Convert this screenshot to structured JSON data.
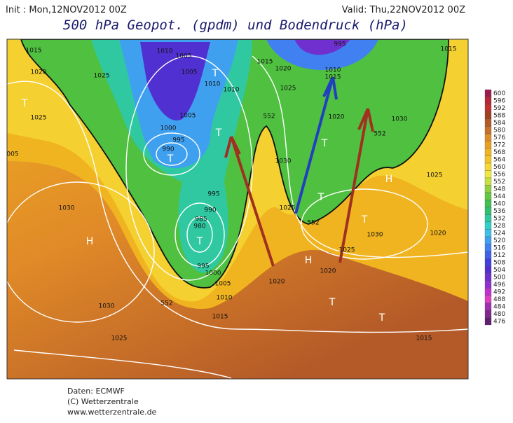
{
  "header": {
    "init": "Init : Mon,12NOV2012 00Z",
    "valid": "Valid: Thu,22NOV2012 00Z",
    "title": "500 hPa Geopot. (gpdm) und Bodendruck (hPa)"
  },
  "colorbar": {
    "levels": [
      600,
      596,
      592,
      588,
      584,
      580,
      576,
      572,
      568,
      564,
      560,
      556,
      552,
      548,
      544,
      540,
      536,
      532,
      528,
      524,
      520,
      516,
      512,
      508,
      504,
      500,
      496,
      492,
      488,
      484,
      480,
      476
    ],
    "colors": [
      "#9b1c4c",
      "#b42838",
      "#c0302c",
      "#a04020",
      "#b45a28",
      "#c8702c",
      "#dc8c28",
      "#e8a020",
      "#f0b420",
      "#f4c428",
      "#f8d830",
      "#f0e840",
      "#c8e040",
      "#90d040",
      "#60c840",
      "#40c050",
      "#30c070",
      "#30c8a0",
      "#30d0c8",
      "#40c0e8",
      "#40a0f0",
      "#4080f0",
      "#4060e8",
      "#4040e0",
      "#5030d0",
      "#7030d0",
      "#9030d0",
      "#c030d0",
      "#e040c0",
      "#a030b0",
      "#802890",
      "#602070"
    ]
  },
  "map_labels": [
    "1015",
    "1020",
    "1025",
    "T",
    "005",
    "1030",
    "H",
    "1030",
    "1025",
    "1025",
    "1010",
    "1005",
    "1005",
    "T",
    "1010",
    "1010",
    "1005",
    "1000",
    "995",
    "990",
    "T",
    "T",
    "995",
    "990",
    "985",
    "980",
    "T",
    "995",
    "1000",
    "1005",
    "1010",
    "1015",
    "1015",
    "1020",
    "1025",
    "995",
    "1010",
    "1015",
    "1020",
    "T",
    "1030",
    "1025",
    "T",
    "H",
    "T",
    "1030",
    "1025",
    "H",
    "1020",
    "1020",
    "T",
    "T",
    "1015",
    "1025",
    "1020",
    "1015",
    "1030",
    "552",
    "552",
    "552",
    "552"
  ],
  "footer": {
    "source": "Daten: ECMWF",
    "copyright": "(C) Wetterzentrale",
    "url": "www.wetterzentrale.de"
  }
}
